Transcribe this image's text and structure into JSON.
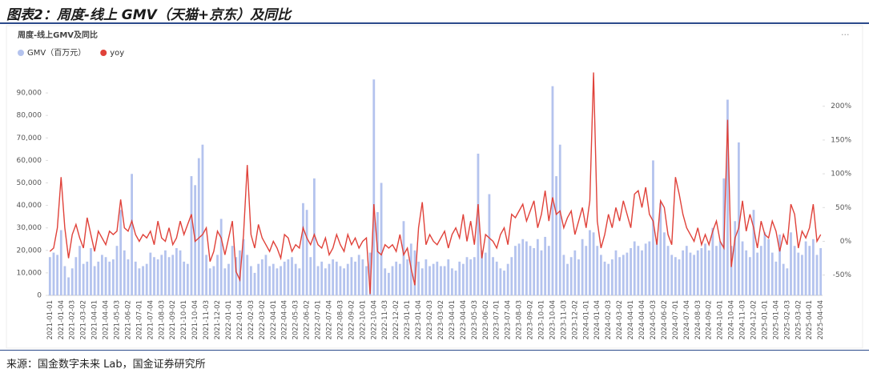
{
  "header": {
    "title": "图表2：周度-线上 GMV（天猫+京东）及同比"
  },
  "source": "来源：国金数字未来 Lab，国金证券研究所",
  "chart_data": {
    "type": "bar-line",
    "title": "周度-线上GMV及同比",
    "categories": [
      "2021-01-01",
      null,
      null,
      "2021-01-04",
      null,
      null,
      "2021-02-03",
      null,
      null,
      "2021-03-02",
      null,
      null,
      "2021-04-01",
      null,
      null,
      "2021-04-04",
      null,
      null,
      "2021-05-03",
      null,
      null,
      "2021-06-02",
      null,
      null,
      "2021-07-01",
      null,
      null,
      "2021-07-04",
      null,
      null,
      "2021-08-03",
      null,
      null,
      "2021-09-02",
      null,
      null,
      "2021-10-01",
      null,
      null,
      "2021-10-04",
      null,
      null,
      "2021-11-03",
      null,
      null,
      "2021-12-02",
      null,
      null,
      "2022-01-01",
      null,
      null,
      "2022-01-04",
      null,
      null,
      "2022-02-03",
      null,
      null,
      "2022-03-02",
      null,
      null,
      "2022-04-01",
      null,
      null,
      "2022-04-04",
      null,
      null,
      "2022-05-03",
      null,
      null,
      "2022-06-02",
      null,
      null,
      "2022-07-01",
      null,
      null,
      "2022-07-04",
      null,
      null,
      "2022-08-03",
      null,
      null,
      "2022-09-02",
      null,
      null,
      "2022-10-01",
      null,
      null,
      "2022-10-04",
      null,
      null,
      "2022-11-03",
      null,
      null,
      "2022-12-02",
      null,
      null,
      "2023-01-01",
      null,
      null,
      "2023-01-04",
      null,
      null,
      "2023-02-03",
      null,
      null,
      "2023-03-02",
      null,
      null,
      "2023-04-01",
      null,
      null,
      "2023-04-04",
      null,
      null,
      "2023-05-03",
      null,
      null,
      "2023-06-02",
      null,
      null,
      "2023-07-01",
      null,
      null,
      "2023-07-04",
      null,
      null,
      "2023-08-03",
      null,
      null,
      "2023-09-02",
      null,
      null,
      "2023-10-01",
      null,
      null,
      "2023-10-04",
      null,
      null,
      "2023-11-03",
      null,
      null,
      "2023-12-02",
      null,
      null,
      "2024-01-01",
      null,
      null,
      "2024-01-04",
      null,
      null,
      "2024-02-03",
      null,
      null,
      "2024-03-02",
      null,
      null,
      "2024-04-01",
      null,
      null,
      "2024-04-04",
      null,
      null,
      "2024-05-03",
      null,
      null,
      "2024-06-02",
      null,
      null,
      "2024-07-01",
      null,
      null,
      "2024-07-04",
      null,
      null,
      "2024-08-03",
      null,
      null,
      "2024-09-02",
      null,
      null,
      "2024-10-01",
      null,
      null,
      "2024-10-04",
      null,
      null,
      "2024-11-03",
      null,
      null,
      "2024-12-02",
      null,
      null,
      "2025-01-01",
      null,
      null,
      "2025-01-04",
      null,
      null,
      "2025-02-03",
      null,
      null,
      "2025-03-02",
      null,
      null,
      "2025-04-01",
      null,
      null,
      "2025-04-04"
    ],
    "series": [
      {
        "name": "GMV（百万元）",
        "color": "#b4c3ee",
        "type": "bar",
        "values": [
          17000,
          19000,
          18000,
          29000,
          13000,
          8000,
          12000,
          17000,
          22000,
          14000,
          15000,
          21000,
          13000,
          15000,
          18000,
          17000,
          15000,
          16000,
          22000,
          38000,
          20000,
          16000,
          54000,
          15000,
          12000,
          13000,
          14000,
          19000,
          17000,
          16000,
          18000,
          20000,
          17000,
          18000,
          21000,
          20000,
          15000,
          14000,
          53000,
          49000,
          61000,
          67000,
          18000,
          12000,
          13000,
          18000,
          34000,
          12000,
          14000,
          22000,
          17000,
          20000,
          25000,
          18000,
          13000,
          10000,
          14000,
          16000,
          18000,
          13000,
          14000,
          12000,
          13000,
          15000,
          16000,
          17000,
          14000,
          12000,
          41000,
          38000,
          17000,
          52000,
          13000,
          15000,
          12000,
          14000,
          16000,
          15000,
          13000,
          12000,
          14000,
          17000,
          15000,
          18000,
          16000,
          13000,
          19000,
          96000,
          37000,
          50000,
          12000,
          10000,
          13000,
          15000,
          14000,
          33000,
          16000,
          23000,
          20000,
          15000,
          12000,
          16000,
          13000,
          14000,
          15000,
          13000,
          13000,
          16000,
          12000,
          11000,
          15000,
          14000,
          17000,
          16000,
          17000,
          63000,
          20000,
          19000,
          45000,
          17000,
          15000,
          12000,
          11000,
          14000,
          17000,
          22000,
          23000,
          25000,
          24000,
          22000,
          21000,
          25000,
          20000,
          26000,
          22000,
          93000,
          53000,
          67000,
          18000,
          14000,
          17000,
          20000,
          16000,
          25000,
          22000,
          29000,
          28000,
          22000,
          18000,
          15000,
          14000,
          16000,
          20000,
          17000,
          18000,
          19000,
          21000,
          24000,
          22000,
          20000,
          23000,
          24000,
          60000,
          25000,
          41000,
          28000,
          22000,
          18000,
          17000,
          16000,
          20000,
          22000,
          19000,
          18000,
          20000,
          21000,
          23000,
          20000,
          30000,
          22000,
          24000,
          52000,
          87000,
          22000,
          33000,
          68000,
          24000,
          20000,
          17000,
          38000,
          19000,
          22000,
          28000,
          25000,
          19000,
          15000,
          27000,
          14000,
          12000,
          28000,
          22000,
          19000,
          18000,
          24000,
          22000,
          25000,
          18000,
          21000
        ]
      },
      {
        "name": "yoy",
        "color": "#e0423a",
        "type": "line",
        "axis": "y2",
        "values": [
          -15,
          -10,
          20,
          95,
          20,
          -25,
          10,
          25,
          5,
          -10,
          35,
          10,
          -15,
          15,
          5,
          -5,
          15,
          10,
          15,
          62,
          20,
          15,
          30,
          10,
          0,
          10,
          5,
          15,
          -5,
          30,
          5,
          0,
          20,
          -5,
          5,
          30,
          10,
          25,
          40,
          0,
          5,
          10,
          20,
          -30,
          -15,
          15,
          5,
          -20,
          5,
          30,
          -45,
          -57,
          10,
          113,
          10,
          -10,
          25,
          5,
          -5,
          -15,
          0,
          -10,
          -25,
          10,
          5,
          -15,
          -5,
          -10,
          20,
          5,
          -5,
          10,
          -5,
          -10,
          5,
          -20,
          -10,
          10,
          -5,
          -15,
          10,
          -5,
          5,
          -10,
          0,
          5,
          -78,
          55,
          -15,
          -20,
          -5,
          -10,
          -5,
          -15,
          10,
          -20,
          -10,
          -40,
          -65,
          20,
          58,
          -5,
          10,
          0,
          -5,
          5,
          15,
          -10,
          10,
          20,
          5,
          40,
          0,
          30,
          -5,
          55,
          -25,
          10,
          5,
          0,
          -10,
          10,
          20,
          -5,
          40,
          35,
          45,
          55,
          30,
          45,
          60,
          20,
          40,
          75,
          30,
          65,
          40,
          45,
          20,
          35,
          45,
          10,
          30,
          50,
          20,
          60,
          250,
          30,
          -10,
          10,
          40,
          20,
          50,
          30,
          60,
          40,
          20,
          70,
          75,
          50,
          80,
          40,
          30,
          -5,
          60,
          50,
          10,
          -5,
          95,
          70,
          40,
          20,
          10,
          0,
          20,
          -5,
          10,
          -5,
          15,
          30,
          0,
          -10,
          180,
          -38,
          5,
          20,
          60,
          15,
          40,
          20,
          -10,
          30,
          10,
          5,
          30,
          15,
          -15,
          10,
          -5,
          55,
          40,
          -10,
          15,
          5,
          20,
          55,
          0,
          10
        ]
      }
    ],
    "ylim": [
      0,
      100000
    ],
    "yticks": [
      0,
      {
        "value": 10000,
        "label": "10,000"
      },
      {
        "value": 20000,
        "label": "20,000"
      },
      {
        "value": 30000,
        "label": "30,000"
      },
      {
        "value": 40000,
        "label": "40,000"
      },
      {
        "value": 50000,
        "label": "50,000"
      },
      {
        "value": 60000,
        "label": "60,000"
      },
      {
        "value": 70000,
        "label": "70,000"
      },
      {
        "value": 80000,
        "label": "80,000"
      },
      {
        "value": 90000,
        "label": "90,000"
      }
    ],
    "y2lim": [
      -80,
      253
    ],
    "y2ticks": [
      {
        "value": -50,
        "label": "-50%"
      },
      {
        "value": 0,
        "label": "0%"
      },
      {
        "value": 50,
        "label": "50%"
      },
      {
        "value": 100,
        "label": "100%"
      },
      {
        "value": 150,
        "label": "150%"
      },
      {
        "value": 200,
        "label": "200%"
      }
    ],
    "legend": "top-left",
    "grid": false
  }
}
